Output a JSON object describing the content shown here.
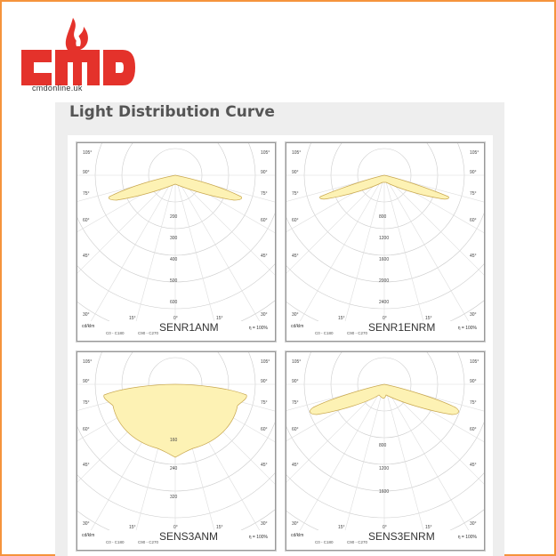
{
  "logo": {
    "text": "CMD",
    "url": "cmdonline.uk"
  },
  "panel": {
    "title": "Light Distribution Curve"
  },
  "colors": {
    "accent": "#e4322b",
    "border": "#f5943c",
    "curve_fill": "#fdf2b4",
    "curve_stroke": "#c9a850"
  },
  "charts": [
    {
      "name": "SENR1ANM",
      "unit": "cd/klm",
      "eta": "η = 100%",
      "legend": [
        "C0 - C180",
        "C90 - C270"
      ],
      "angle_labels": [
        "105°",
        "90°",
        "75°",
        "60°",
        "45°",
        "30°",
        "15°",
        "0°"
      ],
      "radial_labels": [
        "200",
        "300",
        "400",
        "500",
        "600"
      ]
    },
    {
      "name": "SENR1ENRM",
      "unit": "cd/klm",
      "eta": "η = 100%",
      "legend": [
        "C0 - C180",
        "C90 - C270"
      ],
      "angle_labels": [
        "105°",
        "90°",
        "75°",
        "60°",
        "45°",
        "30°",
        "15°",
        "0°"
      ],
      "radial_labels": [
        "800",
        "1200",
        "1600",
        "2000",
        "2400"
      ]
    },
    {
      "name": "SENS3ANM",
      "unit": "cd/klm",
      "eta": "η = 100%",
      "legend": [
        "C0 - C180",
        "C90 - C270"
      ],
      "angle_labels": [
        "105°",
        "90°",
        "75°",
        "60°",
        "45°",
        "30°",
        "15°",
        "0°"
      ],
      "radial_labels": [
        "160",
        "240",
        "320"
      ]
    },
    {
      "name": "SENS3ENRM",
      "unit": "cd/klm",
      "eta": "η = 100%",
      "legend": [
        "C0 - C180",
        "C90 - C270"
      ],
      "angle_labels": [
        "105°",
        "90°",
        "75°",
        "60°",
        "45°",
        "30°",
        "15°",
        "0°"
      ],
      "radial_labels": [
        "800",
        "1200",
        "1600"
      ]
    }
  ]
}
